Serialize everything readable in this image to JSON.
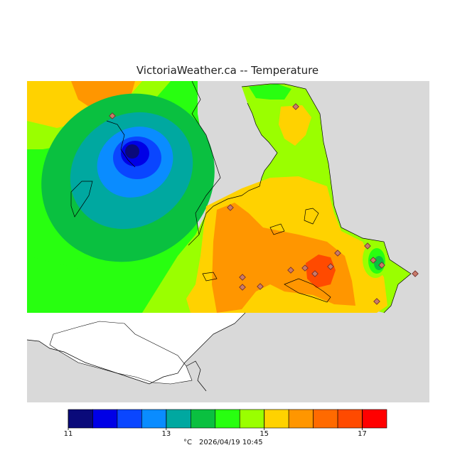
{
  "title": "VictoriaWeather.ca -- Temperature",
  "colorbar": {
    "ticks": [
      "11",
      "13",
      "15",
      "17"
    ],
    "colors": [
      "#0a0a7a",
      "#0000e6",
      "#0a46ff",
      "#0a8cff",
      "#00a8a0",
      "#0ac040",
      "#28ff10",
      "#9aff00",
      "#ffd200",
      "#ff9600",
      "#ff6a00",
      "#ff4a00",
      "#ff0000"
    ],
    "unit": "°C",
    "timestamp": "2026/04/19 10:45"
  },
  "chart_data": {
    "type": "heatmap",
    "title": "VictoriaWeather.ca -- Temperature",
    "unit": "°C",
    "range": [
      11,
      17
    ],
    "timestamp": "2026/04/19 10:45"
  },
  "colors": {
    "ocean": "#d9d9d9",
    "land_uncovered": "#ffffff",
    "station_marker": "#c87a6a"
  }
}
